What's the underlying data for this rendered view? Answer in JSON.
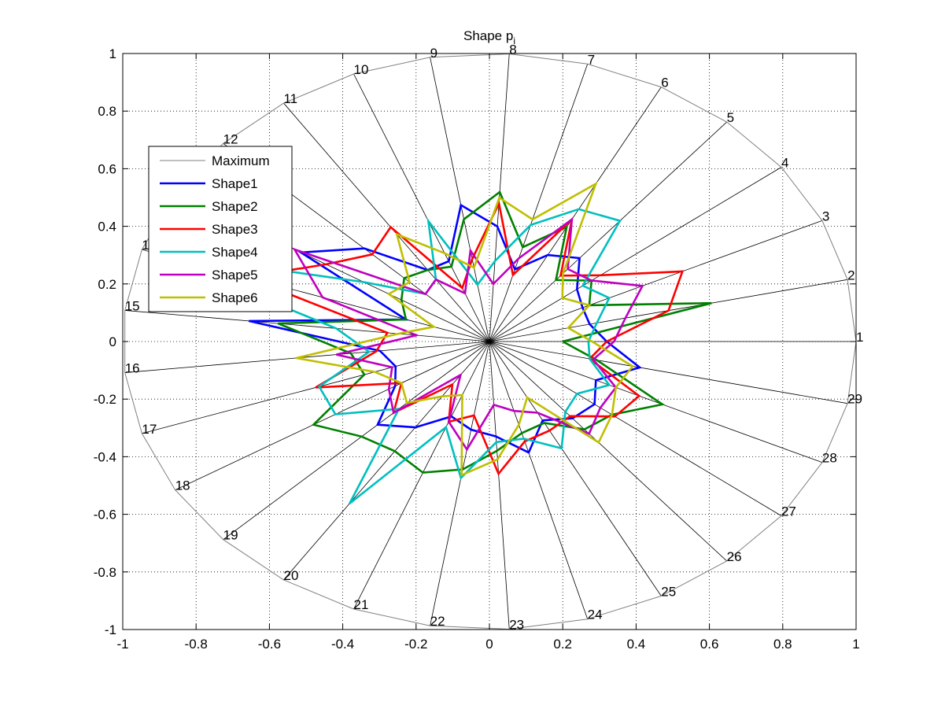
{
  "chart_data": {
    "type": "radar",
    "title": "Shape p",
    "title_subscript": "i",
    "xlim": [
      -1,
      1
    ],
    "ylim": [
      -1,
      1
    ],
    "x_ticks": [
      "-1",
      "-0.8",
      "-0.6",
      "-0.4",
      "-0.2",
      "0",
      "0.2",
      "0.4",
      "0.6",
      "0.8",
      "1"
    ],
    "y_ticks": [
      "-1",
      "-0.8",
      "-0.6",
      "-0.4",
      "-0.2",
      "0",
      "0.2",
      "0.4",
      "0.6",
      "0.8",
      "1"
    ],
    "grid": true,
    "legend_position": "upper-left",
    "axis_labels": [
      "1",
      "2",
      "3",
      "4",
      "5",
      "6",
      "7",
      "8",
      "9",
      "10",
      "11",
      "12",
      "13",
      "14",
      "15",
      "16",
      "17",
      "18",
      "19",
      "20",
      "21",
      "22",
      "23",
      "24",
      "25",
      "26",
      "27",
      "28",
      "29"
    ],
    "max_radius": 1,
    "max_series": {
      "name": "Maximum",
      "color": "#808080"
    },
    "series": [
      {
        "name": "Shape1",
        "color": "#0000ff",
        "values": [
          0.32,
          0.28,
          0.28,
          0.3,
          0.38,
          0.34,
          0.26,
          0.4,
          0.48,
          0.3,
          0.3,
          0.47,
          0.6,
          0.24,
          0.66,
          0.3,
          0.27,
          0.3,
          0.42,
          0.36,
          0.28,
          0.31,
          0.33,
          0.4,
          0.31,
          0.35,
          0.36,
          0.32,
          0.42
        ]
      },
      {
        "name": "Shape2",
        "color": "#008000",
        "values": [
          0.2,
          0.62,
          0.3,
          0.35,
          0.28,
          0.45,
          0.34,
          0.52,
          0.43,
          0.28,
          0.3,
          0.32,
          0.28,
          0.24,
          0.58,
          0.38,
          0.36,
          0.56,
          0.48,
          0.46,
          0.49,
          0.45,
          0.38,
          0.33,
          0.32,
          0.4,
          0.42,
          0.52,
          0.3
        ]
      },
      {
        "name": "Shape3",
        "color": "#ff0000",
        "values": [
          0.32,
          0.5,
          0.58,
          0.38,
          0.3,
          0.48,
          0.24,
          0.48,
          0.29,
          0.2,
          0.48,
          0.44,
          0.52,
          0.7,
          0.28,
          0.31,
          0.5,
          0.28,
          0.36,
          0.18,
          0.3,
          0.26,
          0.46,
          0.36,
          0.35,
          0.34,
          0.43,
          0.45,
          0.28
        ]
      },
      {
        "name": "Shape4",
        "color": "#00bfbf",
        "values": [
          0.27,
          0.3,
          0.36,
          0.32,
          0.55,
          0.52,
          0.42,
          0.28,
          0.2,
          0.45,
          0.26,
          0.24,
          0.4,
          0.98,
          0.42,
          0.33,
          0.49,
          0.49,
          0.34,
          0.68,
          0.32,
          0.48,
          0.35,
          0.35,
          0.42,
          0.32,
          0.3,
          0.36,
          0.28
        ]
      },
      {
        "name": "Shape5",
        "color": "#bf00bf",
        "values": [
          0.34,
          0.38,
          0.46,
          0.35,
          0.33,
          0.48,
          0.3,
          0.2,
          0.32,
          0.18,
          0.26,
          0.24,
          0.62,
          0.48,
          0.2,
          0.42,
          0.28,
          0.32,
          0.36,
          0.14,
          0.3,
          0.38,
          0.22,
          0.25,
          0.28,
          0.42,
          0.38,
          0.38,
          0.29
        ]
      },
      {
        "name": "Shape6",
        "color": "#bfbf00",
        "values": [
          0.28,
          0.22,
          0.3,
          0.25,
          0.31,
          0.62,
          0.44,
          0.5,
          0.26,
          0.33,
          0.45,
          0.3,
          0.32,
          0.16,
          0.25,
          0.53,
          0.33,
          0.28,
          0.31,
          0.23,
          0.2,
          0.47,
          0.41,
          0.3,
          0.22,
          0.46,
          0.42,
          0.38,
          0.4
        ]
      }
    ]
  }
}
